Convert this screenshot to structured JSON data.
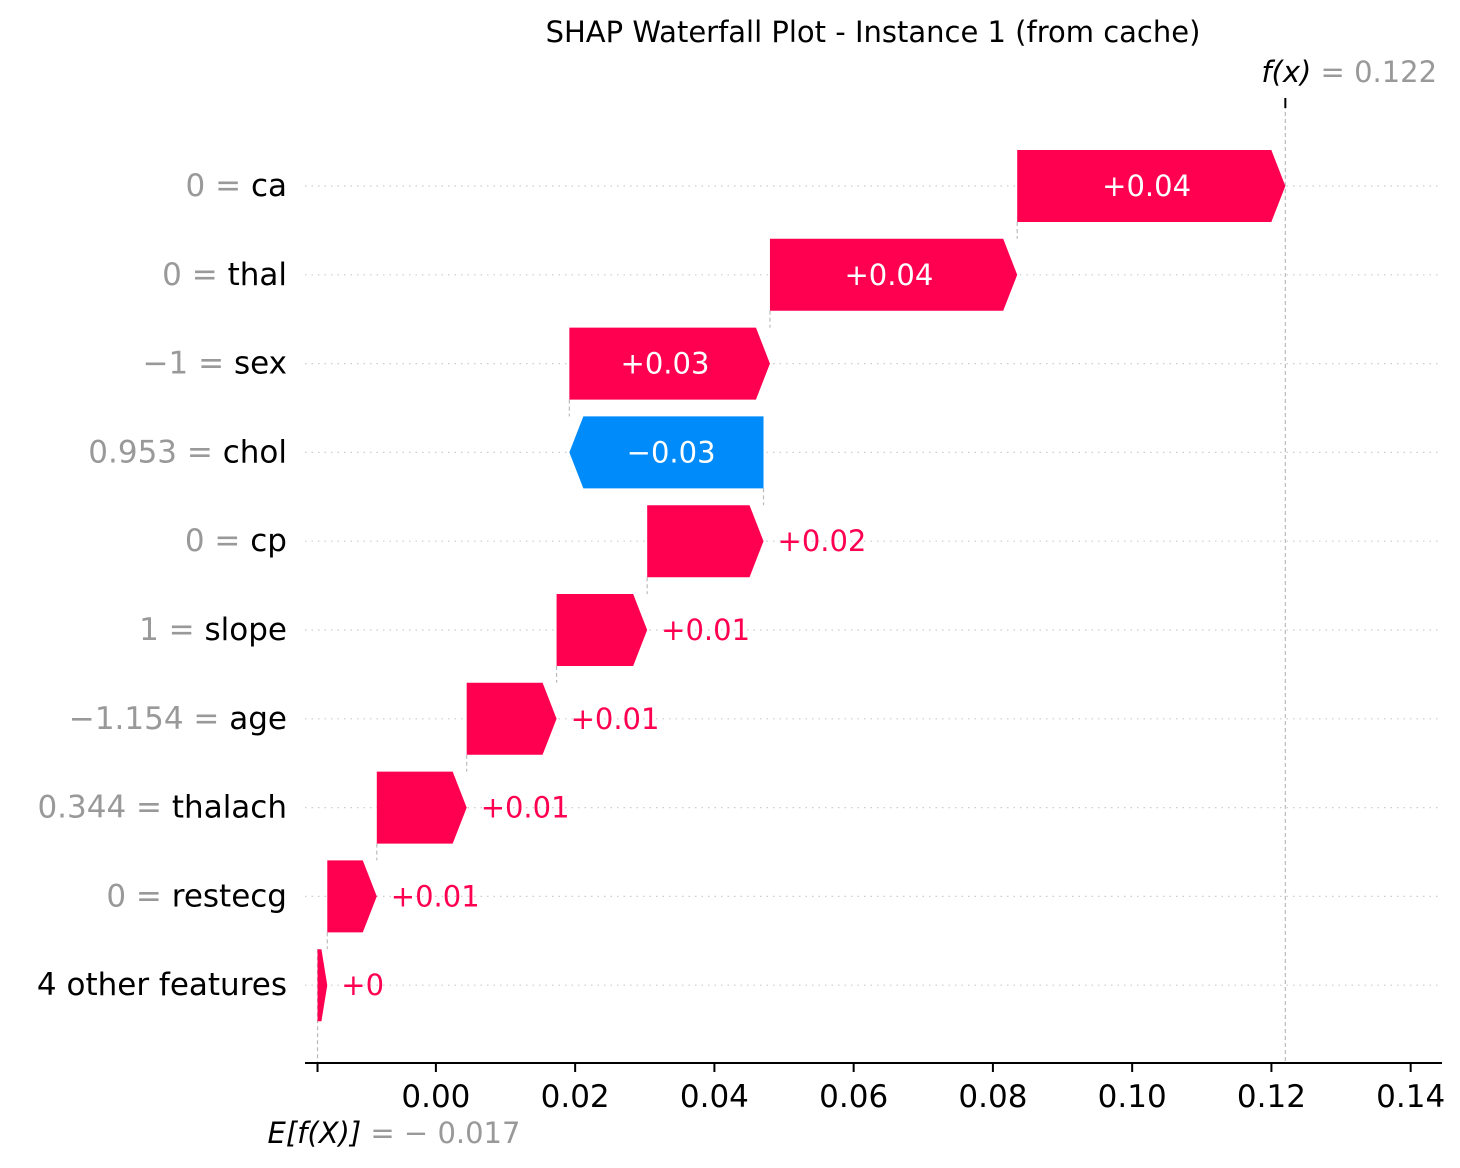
{
  "chart_data": {
    "type": "waterfall",
    "title": "SHAP Waterfall Plot - Instance 1 (from cache)",
    "base_value": -0.017,
    "output_value": 0.122,
    "base_label": {
      "lhs": "E[f(X)]",
      "eq": " = ",
      "value": "− 0.017"
    },
    "output_label": {
      "lhs": "f(x)",
      "eq": " = ",
      "value": "0.122"
    },
    "xlim": [
      -0.0188,
      0.1445
    ],
    "xticks": [
      0.0,
      0.02,
      0.04,
      0.06,
      0.08,
      0.1,
      0.12,
      0.14
    ],
    "xtick_labels": [
      "0.00",
      "0.02",
      "0.04",
      "0.06",
      "0.08",
      "0.10",
      "0.12",
      "0.14"
    ],
    "grid": "horizontal dotted",
    "colors": {
      "positive": "#ff0051",
      "negative": "#008bfb",
      "value_text": "#999999",
      "guide": "#bbbbbb"
    },
    "features": [
      {
        "name": "ca",
        "value": "0",
        "shap": 0.0386,
        "label": "+0.04"
      },
      {
        "name": "thal",
        "value": "0",
        "shap": 0.0356,
        "label": "+0.04"
      },
      {
        "name": "sex",
        "value": "−1",
        "shap": 0.0289,
        "label": "+0.03"
      },
      {
        "name": "chol",
        "value": "0.953",
        "shap": -0.0278,
        "label": "−0.03"
      },
      {
        "name": "cp",
        "value": "0",
        "shap": 0.0168,
        "label": "+0.02"
      },
      {
        "name": "slope",
        "value": "1",
        "shap": 0.0131,
        "label": "+0.01"
      },
      {
        "name": "age",
        "value": "−1.154",
        "shap": 0.013,
        "label": "+0.01"
      },
      {
        "name": "thalach",
        "value": "0.344",
        "shap": 0.013,
        "label": "+0.01"
      },
      {
        "name": "restecg",
        "value": "0",
        "shap": 0.0072,
        "label": "+0.01"
      },
      {
        "name": "4 other features",
        "value": "",
        "shap": 0.0014,
        "label": "+0"
      }
    ]
  }
}
